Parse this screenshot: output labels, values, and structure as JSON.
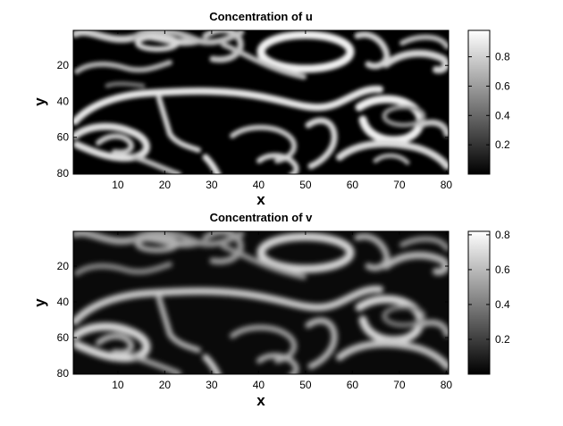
{
  "chart_data": [
    {
      "type": "heatmap",
      "title": "Concentration of u",
      "xlabel": "x",
      "ylabel": "y",
      "x_ticks": [
        10,
        20,
        30,
        40,
        50,
        60,
        70,
        80
      ],
      "y_ticks": [
        20,
        40,
        60,
        80
      ],
      "xlim": [
        0.5,
        80.5
      ],
      "ylim": [
        0.5,
        80.5
      ],
      "y_reversed": true,
      "colormap": "gray",
      "colorbar_ticks": [
        "0.2",
        "0.4",
        "0.6",
        "0.8"
      ],
      "clim": [
        0,
        0.98
      ],
      "grid_size": [
        80,
        80
      ]
    },
    {
      "type": "heatmap",
      "title": "Concentration of v",
      "xlabel": "x",
      "ylabel": "y",
      "x_ticks": [
        10,
        20,
        30,
        40,
        50,
        60,
        70,
        80
      ],
      "y_ticks": [
        20,
        40,
        60,
        80
      ],
      "xlim": [
        0.5,
        80.5
      ],
      "ylim": [
        0.5,
        80.5
      ],
      "y_reversed": true,
      "colormap": "gray",
      "colorbar_ticks": [
        "0.2",
        "0.4",
        "0.6",
        "0.8"
      ],
      "clim": [
        0,
        0.82
      ],
      "grid_size": [
        80,
        80
      ]
    }
  ]
}
